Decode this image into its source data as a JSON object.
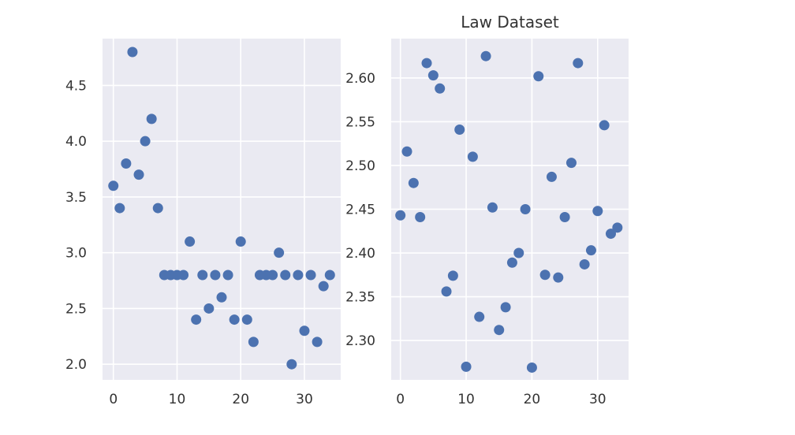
{
  "chart_data": [
    {
      "type": "scatter",
      "title": "",
      "xlabel": "",
      "ylabel": "",
      "xlim": [
        -1.7,
        35.7
      ],
      "ylim": [
        1.86,
        4.92
      ],
      "xticks": [
        0,
        10,
        20,
        30
      ],
      "yticks": [
        2.0,
        2.5,
        3.0,
        3.5,
        4.0,
        4.5
      ],
      "ytick_labels": [
        "2.0",
        "2.5",
        "3.0",
        "3.5",
        "4.0",
        "4.5"
      ],
      "grid": true,
      "color": "#4c72b0",
      "background": "#eaeaf2",
      "x": [
        0,
        1,
        2,
        3,
        4,
        5,
        6,
        7,
        8,
        9,
        10,
        11,
        12,
        13,
        14,
        15,
        16,
        17,
        18,
        19,
        20,
        21,
        22,
        23,
        24,
        25,
        26,
        27,
        28,
        29,
        30,
        31,
        32,
        33,
        34
      ],
      "y": [
        3.6,
        3.4,
        3.8,
        4.8,
        3.7,
        4.0,
        4.2,
        3.4,
        2.8,
        2.8,
        2.8,
        2.8,
        3.1,
        2.4,
        2.8,
        2.5,
        2.8,
        2.6,
        2.8,
        2.4,
        3.1,
        2.4,
        2.2,
        2.8,
        2.8,
        2.8,
        3.0,
        2.8,
        2.0,
        2.8,
        2.3,
        2.8,
        2.2,
        2.7,
        2.8
      ]
    },
    {
      "type": "scatter",
      "title": "Law Dataset",
      "xlabel": "",
      "ylabel": "",
      "xlim": [
        -1.4,
        34.7
      ],
      "ylim": [
        2.255,
        2.645
      ],
      "xticks": [
        0,
        10,
        20,
        30
      ],
      "yticks": [
        2.3,
        2.35,
        2.4,
        2.45,
        2.5,
        2.55,
        2.6
      ],
      "ytick_labels": [
        "2.30",
        "2.35",
        "2.40",
        "2.45",
        "2.50",
        "2.55",
        "2.60"
      ],
      "grid": true,
      "color": "#4c72b0",
      "background": "#eaeaf2",
      "x": [
        0,
        1,
        2,
        3,
        4,
        5,
        6,
        7,
        8,
        9,
        10,
        11,
        12,
        13,
        14,
        15,
        16,
        17,
        18,
        19,
        20,
        21,
        22,
        23,
        24,
        25,
        26,
        27,
        28,
        29,
        30,
        31,
        32,
        33
      ],
      "y": [
        2.443,
        2.516,
        2.48,
        2.441,
        2.617,
        2.603,
        2.588,
        2.356,
        2.374,
        2.541,
        2.27,
        2.51,
        2.327,
        2.625,
        2.452,
        2.312,
        2.338,
        2.389,
        2.4,
        2.45,
        2.269,
        2.602,
        2.375,
        2.487,
        2.372,
        2.441,
        2.503,
        2.617,
        2.387,
        2.403,
        2.448,
        2.546,
        2.422,
        2.429
      ]
    }
  ]
}
